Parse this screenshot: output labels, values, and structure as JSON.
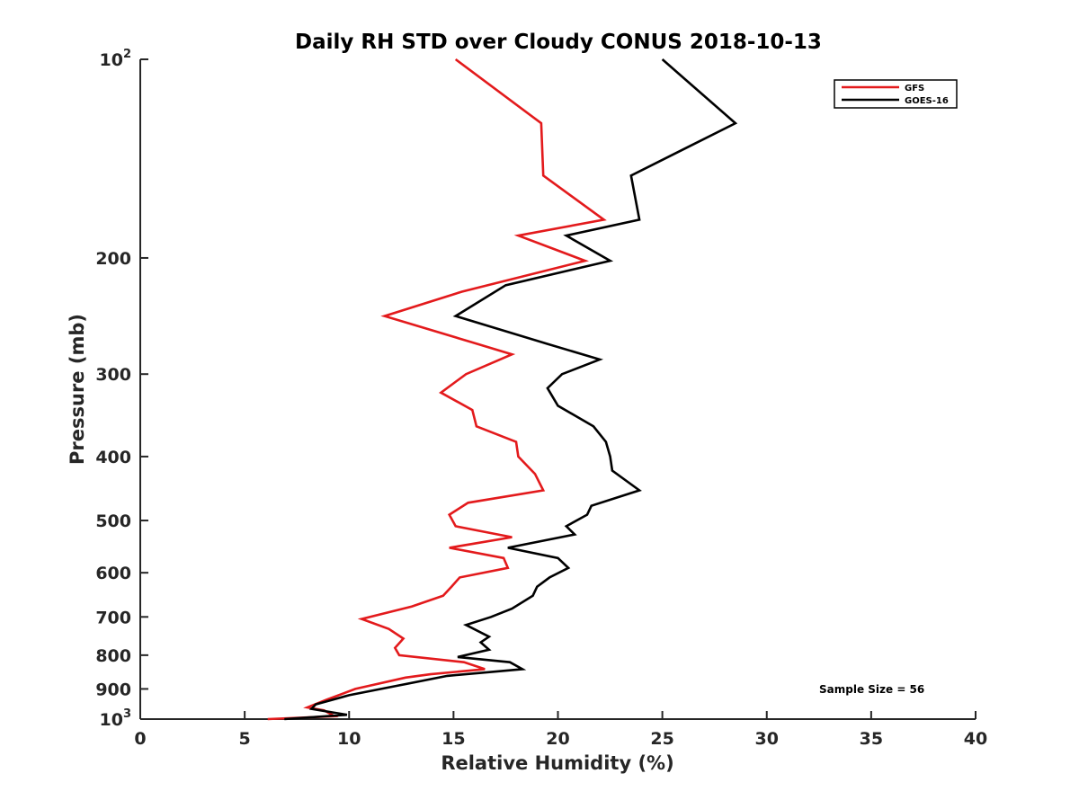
{
  "chart_data": {
    "type": "line",
    "title": "Daily RH STD over Cloudy CONUS 2018-10-13",
    "xlabel": "Relative Humidity (%)",
    "ylabel": "Pressure (mb)",
    "xlim": [
      0,
      40
    ],
    "ylim": [
      100,
      1000
    ],
    "y_scale": "log",
    "y_reversed": true,
    "x_ticks": [
      "0",
      "5",
      "10",
      "15",
      "20",
      "25",
      "30",
      "35",
      "40"
    ],
    "y_ticks": [
      {
        "value": 100,
        "base": "10",
        "exp": "2"
      },
      {
        "value": 200,
        "label": "200"
      },
      {
        "value": 300,
        "label": "300"
      },
      {
        "value": 400,
        "label": "400"
      },
      {
        "value": 500,
        "label": "500"
      },
      {
        "value": 600,
        "label": "600"
      },
      {
        "value": 700,
        "label": "700"
      },
      {
        "value": 800,
        "label": "800"
      },
      {
        "value": 900,
        "label": "900"
      },
      {
        "value": 1000,
        "base": "10",
        "exp": "3"
      }
    ],
    "grid": false,
    "legend_position": "top-right",
    "annotation": "Sample Size = 56",
    "series": [
      {
        "name": "GFS",
        "color": "#e31a1c",
        "points": [
          [
            15.1,
            100
          ],
          [
            19.2,
            125
          ],
          [
            19.3,
            150
          ],
          [
            22.2,
            175
          ],
          [
            18.1,
            185
          ],
          [
            21.3,
            202
          ],
          [
            15.4,
            225
          ],
          [
            11.7,
            245
          ],
          [
            15.3,
            265
          ],
          [
            17.8,
            280
          ],
          [
            15.6,
            300
          ],
          [
            14.4,
            320
          ],
          [
            15.9,
            340
          ],
          [
            16.1,
            360
          ],
          [
            18.0,
            380
          ],
          [
            18.1,
            400
          ],
          [
            18.9,
            425
          ],
          [
            19.3,
            450
          ],
          [
            15.7,
            470
          ],
          [
            14.8,
            490
          ],
          [
            15.1,
            510
          ],
          [
            17.8,
            530
          ],
          [
            14.8,
            550
          ],
          [
            17.4,
            570
          ],
          [
            17.6,
            590
          ],
          [
            15.3,
            610
          ],
          [
            14.9,
            630
          ],
          [
            14.5,
            650
          ],
          [
            13.0,
            675
          ],
          [
            10.6,
            705
          ],
          [
            11.9,
            730
          ],
          [
            12.6,
            755
          ],
          [
            12.2,
            780
          ],
          [
            12.4,
            800
          ],
          [
            15.5,
            820
          ],
          [
            16.5,
            840
          ],
          [
            13.9,
            855
          ],
          [
            12.7,
            865
          ],
          [
            10.3,
            900
          ],
          [
            8.9,
            935
          ],
          [
            8.0,
            960
          ],
          [
            8.8,
            970
          ],
          [
            9.3,
            990
          ],
          [
            6.1,
            1000
          ]
        ]
      },
      {
        "name": "GOES-16",
        "color": "#000000",
        "points": [
          [
            25.0,
            100
          ],
          [
            28.5,
            125
          ],
          [
            23.5,
            150
          ],
          [
            23.9,
            175
          ],
          [
            20.4,
            185
          ],
          [
            22.5,
            202
          ],
          [
            17.5,
            220
          ],
          [
            15.1,
            245
          ],
          [
            19.5,
            270
          ],
          [
            22.0,
            285
          ],
          [
            20.2,
            300
          ],
          [
            19.5,
            315
          ],
          [
            20.0,
            335
          ],
          [
            21.7,
            360
          ],
          [
            22.3,
            380
          ],
          [
            22.5,
            400
          ],
          [
            22.6,
            420
          ],
          [
            23.9,
            450
          ],
          [
            21.6,
            475
          ],
          [
            21.4,
            490
          ],
          [
            20.4,
            510
          ],
          [
            20.8,
            525
          ],
          [
            17.6,
            550
          ],
          [
            20.0,
            570
          ],
          [
            20.5,
            590
          ],
          [
            19.6,
            610
          ],
          [
            19.0,
            630
          ],
          [
            18.8,
            650
          ],
          [
            17.8,
            680
          ],
          [
            16.8,
            700
          ],
          [
            15.6,
            720
          ],
          [
            16.7,
            750
          ],
          [
            16.3,
            765
          ],
          [
            16.7,
            785
          ],
          [
            15.2,
            805
          ],
          [
            17.7,
            820
          ],
          [
            18.3,
            840
          ],
          [
            14.7,
            860
          ],
          [
            12.3,
            890
          ],
          [
            10.0,
            920
          ],
          [
            8.4,
            950
          ],
          [
            8.2,
            965
          ],
          [
            9.9,
            985
          ],
          [
            6.9,
            1000
          ]
        ]
      }
    ]
  }
}
